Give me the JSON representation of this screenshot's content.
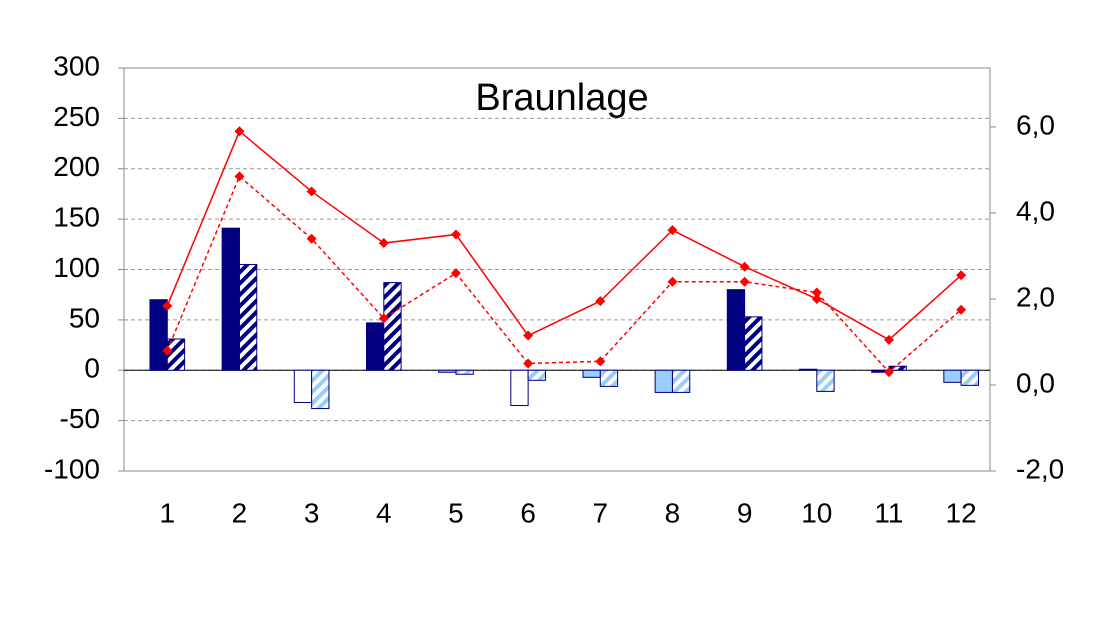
{
  "chart_data": {
    "type": "bar",
    "title": "Braunlage",
    "categories": [
      "1",
      "2",
      "3",
      "4",
      "5",
      "6",
      "7",
      "8",
      "9",
      "10",
      "11",
      "12"
    ],
    "series": [
      {
        "type": "bar",
        "color": "#000080",
        "hatch": false,
        "values": [
          70,
          141,
          -32,
          47,
          -2,
          -35,
          -7,
          -22,
          80,
          1,
          -2,
          -12
        ],
        "colors": [
          "#000080",
          "#000080",
          "#ffffff",
          "#000080",
          "#99ccff",
          "#ffffff",
          "#99ccff",
          "#99ccff",
          "#000080",
          "#000080",
          "#000080",
          "#99ccff"
        ]
      },
      {
        "type": "bar",
        "color": "#000080",
        "hatch": true,
        "values": [
          31,
          105,
          -38,
          87,
          -4,
          -10,
          -16,
          -22,
          53,
          -21,
          4,
          -15
        ],
        "colors": [
          "#000080",
          "#000080",
          "#99ccff",
          "#000080",
          "#99ccff",
          "#99ccff",
          "#99ccff",
          "#99ccff",
          "#000080",
          "#99ccff",
          "#000080",
          "#99ccff"
        ]
      },
      {
        "type": "line",
        "axis": "y2",
        "color": "#ff0000",
        "dashed": false,
        "values": [
          1.84,
          5.9,
          4.5,
          3.3,
          3.5,
          1.15,
          1.95,
          3.6,
          2.75,
          2.0,
          1.05,
          2.55
        ]
      },
      {
        "type": "line",
        "axis": "y2",
        "color": "#ff0000",
        "dashed": true,
        "values": [
          0.8,
          4.85,
          3.4,
          1.55,
          2.6,
          0.5,
          0.55,
          2.4,
          2.4,
          2.15,
          0.3,
          1.75
        ]
      }
    ],
    "ylim": [
      -100,
      300
    ],
    "yticks": [
      -100,
      -50,
      0,
      50,
      100,
      150,
      200,
      250,
      300
    ],
    "y2lim": [
      -2,
      7.37
    ],
    "y2ticks": [
      {
        "value": -2,
        "label": "-2,0"
      },
      {
        "value": 0,
        "label": "0,0"
      },
      {
        "value": 2,
        "label": "2,0"
      },
      {
        "value": 4,
        "label": "4,0"
      },
      {
        "value": 6,
        "label": "6,0"
      }
    ],
    "grid": true
  }
}
